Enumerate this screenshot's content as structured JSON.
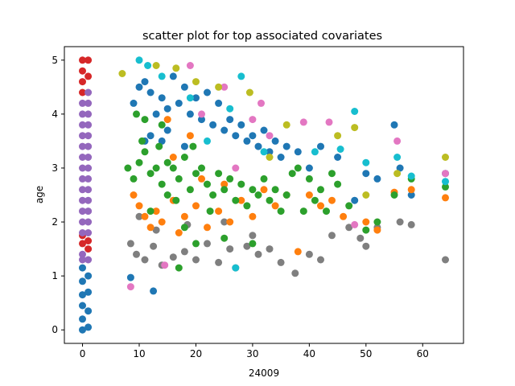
{
  "chart_data": {
    "type": "scatter",
    "title": "scatter plot for top associated covariates",
    "xlabel": "24009",
    "ylabel": "age",
    "xlim": [
      -3.2,
      67.2
    ],
    "ylim": [
      -0.25,
      5.25
    ],
    "xticks": [
      0,
      10,
      20,
      30,
      40,
      50,
      60
    ],
    "yticks": [
      0,
      1,
      2,
      3,
      4,
      5
    ],
    "grid": false,
    "legend": "none",
    "series": [
      {
        "color": "#7f7f7f",
        "points": [
          [
            8.5,
            1.6
          ],
          [
            9.5,
            1.4
          ],
          [
            11,
            1.3
          ],
          [
            12.5,
            1.55
          ],
          [
            14,
            1.2
          ],
          [
            16,
            1.35
          ],
          [
            18,
            1.45
          ],
          [
            20,
            1.3
          ],
          [
            22,
            1.6
          ],
          [
            24,
            1.25
          ],
          [
            26,
            1.5
          ],
          [
            27,
            1.15
          ],
          [
            29,
            1.55
          ],
          [
            31,
            1.4
          ],
          [
            33,
            1.5
          ],
          [
            35,
            1.25
          ],
          [
            37.5,
            1.05
          ],
          [
            40,
            1.4
          ],
          [
            42,
            1.3
          ],
          [
            44,
            1.75
          ],
          [
            47,
            1.9
          ],
          [
            49,
            1.7
          ],
          [
            50,
            1.55
          ],
          [
            52,
            1.9
          ],
          [
            56,
            2.0
          ],
          [
            58,
            1.95
          ],
          [
            64,
            1.3
          ],
          [
            30,
            1.75
          ],
          [
            13,
            1.85
          ],
          [
            18.5,
            1.95
          ],
          [
            10,
            2.1
          ],
          [
            25,
            2.0
          ]
        ]
      },
      {
        "color": "#1f77b4",
        "points": [
          [
            0,
            0
          ],
          [
            0,
            0.2
          ],
          [
            0,
            0.45
          ],
          [
            0,
            0.65
          ],
          [
            0,
            0.9
          ],
          [
            0,
            1.15
          ],
          [
            1,
            0.05
          ],
          [
            1,
            0.35
          ],
          [
            1,
            0.7
          ],
          [
            1,
            1.0
          ],
          [
            8.5,
            0.97
          ],
          [
            12.5,
            0.72
          ],
          [
            9,
            4.2
          ],
          [
            10,
            4.5
          ],
          [
            11,
            4.6
          ],
          [
            12,
            4.4
          ],
          [
            13,
            4.0
          ],
          [
            14,
            4.3
          ],
          [
            15,
            4.1
          ],
          [
            16,
            4.7
          ],
          [
            17,
            4.2
          ],
          [
            18,
            4.5
          ],
          [
            19,
            4.0
          ],
          [
            20,
            4.3
          ],
          [
            21,
            3.9
          ],
          [
            22,
            4.4
          ],
          [
            23,
            3.8
          ],
          [
            24,
            4.2
          ],
          [
            25,
            3.7
          ],
          [
            26,
            3.9
          ],
          [
            27,
            3.6
          ],
          [
            28,
            3.8
          ],
          [
            29,
            3.5
          ],
          [
            30,
            3.6
          ],
          [
            31,
            3.4
          ],
          [
            32,
            3.7
          ],
          [
            33,
            3.3
          ],
          [
            34,
            3.5
          ],
          [
            35,
            3.2
          ],
          [
            36,
            3.4
          ],
          [
            38,
            3.3
          ],
          [
            40,
            3.0
          ],
          [
            42,
            3.4
          ],
          [
            45,
            3.2
          ],
          [
            48,
            2.4
          ],
          [
            50,
            2.9
          ],
          [
            52,
            2.8
          ],
          [
            55,
            3.8
          ],
          [
            56,
            3.0
          ],
          [
            58,
            2.5
          ],
          [
            64,
            2.9
          ],
          [
            12,
            3.6
          ],
          [
            15,
            3.7
          ],
          [
            18,
            3.4
          ],
          [
            14,
            3.5
          ],
          [
            11,
            3.5
          ]
        ]
      },
      {
        "color": "#ff7f0e",
        "points": [
          [
            9,
            2.5
          ],
          [
            10,
            2.3
          ],
          [
            11,
            2.1
          ],
          [
            12,
            1.9
          ],
          [
            13,
            2.2
          ],
          [
            14,
            2.0
          ],
          [
            15,
            3.9
          ],
          [
            16,
            2.4
          ],
          [
            17,
            1.8
          ],
          [
            18,
            2.1
          ],
          [
            19,
            3.6
          ],
          [
            20,
            2.3
          ],
          [
            22,
            1.9
          ],
          [
            24,
            2.2
          ],
          [
            26,
            2.0
          ],
          [
            28,
            2.4
          ],
          [
            30,
            2.1
          ],
          [
            32,
            2.6
          ],
          [
            34,
            2.3
          ],
          [
            36,
            2.5
          ],
          [
            38,
            1.45
          ],
          [
            40,
            2.5
          ],
          [
            42,
            2.3
          ],
          [
            44,
            2.4
          ],
          [
            46,
            2.1
          ],
          [
            50,
            2.0
          ],
          [
            52,
            1.85
          ],
          [
            55,
            2.55
          ],
          [
            58,
            2.6
          ],
          [
            64,
            2.45
          ],
          [
            25,
            2.7
          ],
          [
            16,
            3.2
          ],
          [
            21,
            2.8
          ]
        ]
      },
      {
        "color": "#2ca02c",
        "points": [
          [
            8,
            3.0
          ],
          [
            9,
            2.8
          ],
          [
            10,
            3.1
          ],
          [
            11,
            3.3
          ],
          [
            12,
            2.9
          ],
          [
            13,
            3.0
          ],
          [
            14,
            2.7
          ],
          [
            15,
            3.1
          ],
          [
            16,
            3.0
          ],
          [
            17,
            2.8
          ],
          [
            18,
            3.2
          ],
          [
            19,
            2.6
          ],
          [
            20,
            2.9
          ],
          [
            21,
            3.0
          ],
          [
            22,
            2.7
          ],
          [
            23,
            2.5
          ],
          [
            24,
            2.9
          ],
          [
            25,
            2.6
          ],
          [
            26,
            2.8
          ],
          [
            27,
            2.4
          ],
          [
            28,
            2.7
          ],
          [
            29,
            2.3
          ],
          [
            30,
            2.6
          ],
          [
            31,
            2.5
          ],
          [
            32,
            2.8
          ],
          [
            33,
            2.4
          ],
          [
            34,
            2.6
          ],
          [
            35,
            2.2
          ],
          [
            36,
            2.5
          ],
          [
            37,
            2.9
          ],
          [
            38,
            3.0
          ],
          [
            39,
            2.2
          ],
          [
            40,
            2.8
          ],
          [
            41,
            2.4
          ],
          [
            42,
            2.6
          ],
          [
            43,
            2.2
          ],
          [
            44,
            2.9
          ],
          [
            45,
            2.7
          ],
          [
            47,
            2.3
          ],
          [
            50,
            1.85
          ],
          [
            52,
            2.0
          ],
          [
            55,
            2.5
          ],
          [
            58,
            2.8
          ],
          [
            64,
            2.65
          ],
          [
            10.5,
            3.5
          ],
          [
            13.5,
            3.4
          ],
          [
            16.5,
            2.4
          ],
          [
            19.5,
            3.4
          ],
          [
            22.5,
            2.2
          ],
          [
            12,
            2.2
          ],
          [
            15,
            2.5
          ],
          [
            18,
            1.9
          ],
          [
            20,
            1.6
          ],
          [
            25,
            1.7
          ],
          [
            30,
            1.6
          ],
          [
            17,
            1.15
          ],
          [
            11,
            3.9
          ],
          [
            9.5,
            4.0
          ],
          [
            14,
            3.8
          ]
        ]
      },
      {
        "color": "#d62728",
        "points": [
          [
            0,
            5.0
          ],
          [
            0,
            4.8
          ],
          [
            0,
            4.6
          ],
          [
            0,
            4.4
          ],
          [
            0,
            1.6
          ],
          [
            0,
            1.75
          ],
          [
            1,
            5.0
          ],
          [
            1,
            4.7
          ],
          [
            1,
            1.5
          ],
          [
            1,
            1.65
          ]
        ]
      },
      {
        "color": "#9467bd",
        "points": [
          [
            0,
            4.2
          ],
          [
            0,
            4.0
          ],
          [
            0,
            3.8
          ],
          [
            0,
            3.6
          ],
          [
            0,
            3.4
          ],
          [
            0,
            3.2
          ],
          [
            0,
            3.0
          ],
          [
            0,
            2.8
          ],
          [
            0,
            2.6
          ],
          [
            0,
            2.4
          ],
          [
            0,
            2.2
          ],
          [
            0,
            2.0
          ],
          [
            0,
            1.8
          ],
          [
            0,
            1.4
          ],
          [
            0,
            1.3
          ],
          [
            1,
            4.4
          ],
          [
            1,
            4.2
          ],
          [
            1,
            4.0
          ],
          [
            1,
            3.8
          ],
          [
            1,
            3.6
          ],
          [
            1,
            3.4
          ],
          [
            1,
            3.2
          ],
          [
            1,
            3.0
          ],
          [
            1,
            2.8
          ],
          [
            1,
            2.6
          ],
          [
            1,
            2.4
          ],
          [
            1,
            2.2
          ],
          [
            1,
            2.0
          ],
          [
            1,
            1.8
          ],
          [
            1,
            1.3
          ]
        ]
      },
      {
        "color": "#e377c2",
        "points": [
          [
            8.5,
            0.8
          ],
          [
            14.5,
            1.2
          ],
          [
            19,
            4.9
          ],
          [
            25,
            4.5
          ],
          [
            31.5,
            4.2
          ],
          [
            33,
            3.6
          ],
          [
            39,
            3.85
          ],
          [
            43.5,
            3.85
          ],
          [
            48,
            1.95
          ],
          [
            55.5,
            3.5
          ],
          [
            64,
            2.9
          ],
          [
            27,
            3.0
          ],
          [
            21,
            4.0
          ],
          [
            30,
            3.9
          ]
        ]
      },
      {
        "color": "#bcbd22",
        "points": [
          [
            7,
            4.75
          ],
          [
            13,
            4.9
          ],
          [
            16.5,
            4.85
          ],
          [
            24,
            4.5
          ],
          [
            29.5,
            4.4
          ],
          [
            36,
            3.8
          ],
          [
            45,
            3.6
          ],
          [
            48,
            3.75
          ],
          [
            50,
            2.5
          ],
          [
            55.5,
            2.9
          ],
          [
            64,
            3.2
          ],
          [
            20,
            4.6
          ],
          [
            33,
            3.2
          ]
        ]
      },
      {
        "color": "#17becf",
        "points": [
          [
            10,
            5.0
          ],
          [
            11.5,
            4.9
          ],
          [
            14,
            4.7
          ],
          [
            19,
            4.3
          ],
          [
            26,
            4.1
          ],
          [
            28,
            4.7
          ],
          [
            32,
            3.3
          ],
          [
            41,
            3.3
          ],
          [
            45.5,
            3.35
          ],
          [
            48,
            4.05
          ],
          [
            50,
            3.1
          ],
          [
            55.5,
            3.2
          ],
          [
            58,
            2.85
          ],
          [
            64,
            2.75
          ],
          [
            27,
            1.15
          ],
          [
            22,
            3.5
          ]
        ]
      }
    ]
  }
}
